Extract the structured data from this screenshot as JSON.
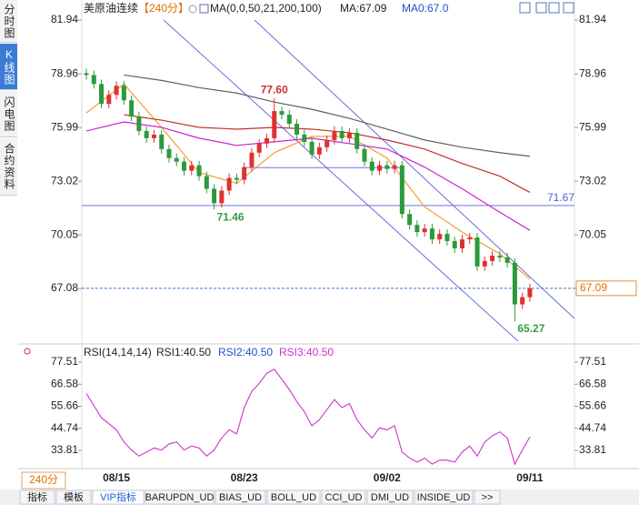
{
  "chart_data": [
    {
      "type": "candlestick",
      "title": "美原油连续",
      "period": "【240分】",
      "indicator": "MA(0,0,50,21,200,100)",
      "legend": [
        "MA:67.09",
        "MA0:67.0"
      ],
      "categories": [
        null,
        null,
        null,
        null,
        "08/15",
        null,
        null,
        null,
        null,
        null,
        null,
        null,
        null,
        null,
        null,
        null,
        null,
        null,
        null,
        null,
        null,
        "08/23",
        null,
        null,
        null,
        null,
        null,
        null,
        null,
        null,
        null,
        null,
        null,
        null,
        null,
        null,
        null,
        null,
        null,
        null,
        "09/02",
        null,
        null,
        null,
        null,
        null,
        null,
        null,
        null,
        null,
        null,
        null,
        null,
        null,
        null,
        null,
        null,
        null,
        null,
        "09/11"
      ],
      "open": [
        79.0,
        78.9,
        78.4,
        77.3,
        77.8,
        78.3,
        77.5,
        76.6,
        75.8,
        75.4,
        75.6,
        74.8,
        74.3,
        74.1,
        73.6,
        73.9,
        73.3,
        72.6,
        71.8,
        72.5,
        73.2,
        73.1,
        73.8,
        74.6,
        75.1,
        75.4,
        76.9,
        76.7,
        76.2,
        75.6,
        75.2,
        74.5,
        74.9,
        75.3,
        75.8,
        75.4,
        75.7,
        74.8,
        74.1,
        73.6,
        73.9,
        73.7,
        73.9,
        71.2,
        70.6,
        70.2,
        70.4,
        69.8,
        70.1,
        69.7,
        69.3,
        69.8,
        69.9,
        68.3,
        68.6,
        68.9,
        68.8,
        68.5,
        66.2,
        66.6
      ],
      "high": [
        79.25,
        79.15,
        78.65,
        78.05,
        78.55,
        78.55,
        77.75,
        76.85,
        76.05,
        75.85,
        75.85,
        75.05,
        74.55,
        74.35,
        74.15,
        74.15,
        73.55,
        72.85,
        72.75,
        73.45,
        73.45,
        74.05,
        74.85,
        75.35,
        75.65,
        77.6,
        77.15,
        76.95,
        76.45,
        75.85,
        75.45,
        75.15,
        75.55,
        76.05,
        76.05,
        75.95,
        75.95,
        75.05,
        74.35,
        74.15,
        74.15,
        74.15,
        74.15,
        71.45,
        70.85,
        70.65,
        70.65,
        70.35,
        70.35,
        69.95,
        70.05,
        70.15,
        70.15,
        68.85,
        69.15,
        69.15,
        69.05,
        68.75,
        66.85,
        67.34
      ],
      "low": [
        78.65,
        78.15,
        77.05,
        77.05,
        77.55,
        77.25,
        76.35,
        75.55,
        75.15,
        75.15,
        74.55,
        74.05,
        73.85,
        73.35,
        73.35,
        73.05,
        72.35,
        71.46,
        71.55,
        72.25,
        72.85,
        72.85,
        73.55,
        74.35,
        74.85,
        75.15,
        76.45,
        75.95,
        75.35,
        74.95,
        74.25,
        74.25,
        74.65,
        75.05,
        75.15,
        75.15,
        74.55,
        73.85,
        73.35,
        73.35,
        73.45,
        73.45,
        70.95,
        70.35,
        69.95,
        69.95,
        69.55,
        69.55,
        69.45,
        69.05,
        69.05,
        69.55,
        68.05,
        68.05,
        68.35,
        68.55,
        68.25,
        65.27,
        65.95,
        66.35
      ],
      "close": [
        78.9,
        78.4,
        77.3,
        77.8,
        78.3,
        77.5,
        76.6,
        75.8,
        75.4,
        75.6,
        74.8,
        74.3,
        74.1,
        73.6,
        73.9,
        73.3,
        72.6,
        71.8,
        72.5,
        73.2,
        73.1,
        73.8,
        74.6,
        75.1,
        75.4,
        76.9,
        76.7,
        76.2,
        75.6,
        75.2,
        74.5,
        74.9,
        75.3,
        75.8,
        75.4,
        75.7,
        74.8,
        74.1,
        73.6,
        73.9,
        73.7,
        73.9,
        71.2,
        70.6,
        70.2,
        70.4,
        69.8,
        70.1,
        69.7,
        69.3,
        69.8,
        69.9,
        68.3,
        68.6,
        68.9,
        68.8,
        68.5,
        66.2,
        66.6,
        67.09
      ],
      "high_labels": [
        null,
        null,
        null,
        null,
        null,
        null,
        null,
        null,
        null,
        null,
        null,
        null,
        null,
        null,
        null,
        null,
        null,
        null,
        null,
        null,
        null,
        null,
        null,
        null,
        null,
        "77.60",
        null,
        null,
        null,
        null,
        null,
        null,
        null,
        null,
        null,
        null,
        null,
        null,
        null,
        null,
        null,
        null,
        null,
        null,
        null,
        null,
        null,
        null,
        null,
        null,
        null,
        null,
        null,
        null,
        null,
        null,
        null,
        null,
        null,
        null
      ],
      "low_labels": [
        null,
        null,
        null,
        null,
        null,
        null,
        null,
        null,
        null,
        null,
        null,
        null,
        null,
        null,
        null,
        null,
        null,
        "71.46",
        null,
        null,
        null,
        null,
        null,
        null,
        null,
        null,
        null,
        null,
        null,
        null,
        null,
        null,
        null,
        null,
        null,
        null,
        null,
        null,
        null,
        null,
        null,
        null,
        null,
        null,
        null,
        null,
        null,
        null,
        null,
        null,
        null,
        null,
        null,
        null,
        null,
        null,
        null,
        "65.27",
        null,
        null
      ],
      "up_color": "#e03030",
      "down_color": "#2a9a3a",
      "series": [
        {
          "color": "#f0a030",
          "x": [
            0,
            5,
            10,
            15,
            20,
            25,
            30,
            35,
            40,
            45,
            50,
            55,
            59
          ],
          "values": [
            76.8,
            78.4,
            76.0,
            73.5,
            72.9,
            74.6,
            75.5,
            75.5,
            74.3,
            71.6,
            70.2,
            69.0,
            67.6
          ]
        },
        {
          "color": "#d020d0",
          "x": [
            0,
            5,
            10,
            15,
            20,
            25,
            30,
            35,
            40,
            45,
            50,
            55,
            59
          ],
          "values": [
            75.8,
            76.3,
            76.0,
            75.4,
            75.0,
            75.2,
            75.4,
            75.1,
            74.8,
            73.8,
            72.6,
            71.3,
            70.3
          ]
        },
        {
          "color": "#c03030",
          "x": [
            0,
            5,
            10,
            15,
            20,
            25,
            30,
            35,
            40,
            45,
            50,
            55,
            59
          ],
          "values": [
            null,
            76.7,
            76.4,
            76.0,
            75.9,
            76.0,
            75.9,
            75.7,
            75.3,
            74.8,
            74.0,
            73.3,
            72.4
          ]
        },
        {
          "color": "#606060",
          "x": [
            0,
            5,
            10,
            15,
            20,
            25,
            30,
            35,
            40,
            45,
            50,
            55,
            59
          ],
          "values": [
            null,
            78.9,
            78.6,
            78.2,
            77.9,
            77.4,
            77.0,
            76.5,
            75.9,
            75.3,
            74.9,
            74.6,
            74.4
          ]
        }
      ],
      "hline": 71.67,
      "segment_line": 73.77,
      "last_price": 67.09,
      "ylim": [
        64.16,
        82.8
      ],
      "yticks": [
        81.94,
        78.96,
        75.99,
        73.02,
        70.05,
        67.08
      ]
    },
    {
      "type": "line",
      "title": "RSI(14,14,14)",
      "legend": [
        "RSI1:40.50",
        "RSI2:40.50",
        "RSI3:40.50"
      ],
      "series": [
        {
          "color": "#cc33cc",
          "values": [
            62,
            56,
            50,
            47,
            44,
            38,
            34,
            31,
            33,
            35,
            34,
            37,
            38,
            34,
            36,
            35,
            31,
            34,
            40,
            44,
            42,
            55,
            63,
            67,
            72,
            74,
            69,
            64,
            58,
            53,
            46,
            49,
            54,
            59,
            55,
            57,
            49,
            44,
            40,
            45,
            44,
            46,
            33,
            30,
            28,
            30,
            27,
            29,
            29,
            28,
            33,
            36,
            31,
            38,
            41,
            43,
            40,
            27,
            34,
            40.5
          ]
        }
      ],
      "ylim": [
        24.81,
        83.36
      ],
      "yticks": [
        77.51,
        66.58,
        55.66,
        44.74,
        33.81
      ]
    }
  ],
  "ui": {
    "side_tabs": [
      "分时图",
      "K线图",
      "闪电图",
      "合约资料"
    ],
    "period_box": "240分",
    "bottom_tabs": [
      "指标",
      "模板",
      "VIP指标",
      "BARUPDN_UD",
      "BIAS_UD",
      "BOLL_UD",
      "CCI_UD",
      "DMI_UD",
      "INSIDE_UD",
      ">>"
    ]
  }
}
